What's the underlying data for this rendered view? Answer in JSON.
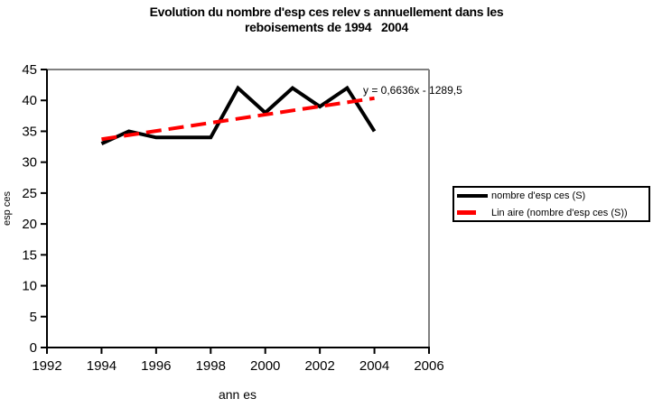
{
  "title": {
    "line1": "Evolution du nombre d'esp ces relev s annuellement dans les",
    "line2": "reboisements de 1994   2004"
  },
  "axes": {
    "x_label": "ann es",
    "y_label": "esp ces"
  },
  "equation": "y = 0,6636x - 1289,5",
  "legend": {
    "items": [
      {
        "label": "nombre d'esp ces (S)",
        "color": "#000000",
        "style": "solid"
      },
      {
        "label": "Lin aire (nombre d'esp ces (S))",
        "color": "#FF0000",
        "style": "dashed"
      }
    ]
  },
  "colors": {
    "data_line": "#000000",
    "trendline": "#FF0000",
    "axis": "#000000",
    "plot_border": "#808080",
    "background": "#FFFFFF",
    "text": "#000000"
  },
  "chart_data": {
    "type": "line",
    "title": "Evolution du nombre d'esp ces relev s annuellement dans les reboisements de 1994   2004",
    "xlabel": "ann es",
    "ylabel": "esp ces",
    "x": [
      1994,
      1995,
      1996,
      1997,
      1998,
      1999,
      2000,
      2001,
      2002,
      2003,
      2004
    ],
    "series": [
      {
        "name": "nombre d'esp ces (S)",
        "type": "line",
        "color": "#000000",
        "style": "solid",
        "values": [
          33,
          35,
          34,
          34,
          34,
          42,
          38,
          42,
          39,
          42,
          35
        ]
      },
      {
        "name": "Lin aire (nombre d'esp ces (S))",
        "type": "trendline",
        "color": "#FF0000",
        "style": "dashed",
        "slope": 0.6636,
        "intercept": -1289.5,
        "x_start": 1994,
        "x_end": 2004,
        "equation": "y = 0,6636x - 1289,5"
      }
    ],
    "xlim": [
      1992,
      2006
    ],
    "ylim": [
      0,
      45
    ],
    "x_ticks": [
      1992,
      1994,
      1996,
      1998,
      2000,
      2002,
      2004,
      2006
    ],
    "y_ticks": [
      0,
      5,
      10,
      15,
      20,
      25,
      30,
      35,
      40,
      45
    ],
    "grid": false,
    "legend_position": "right"
  }
}
